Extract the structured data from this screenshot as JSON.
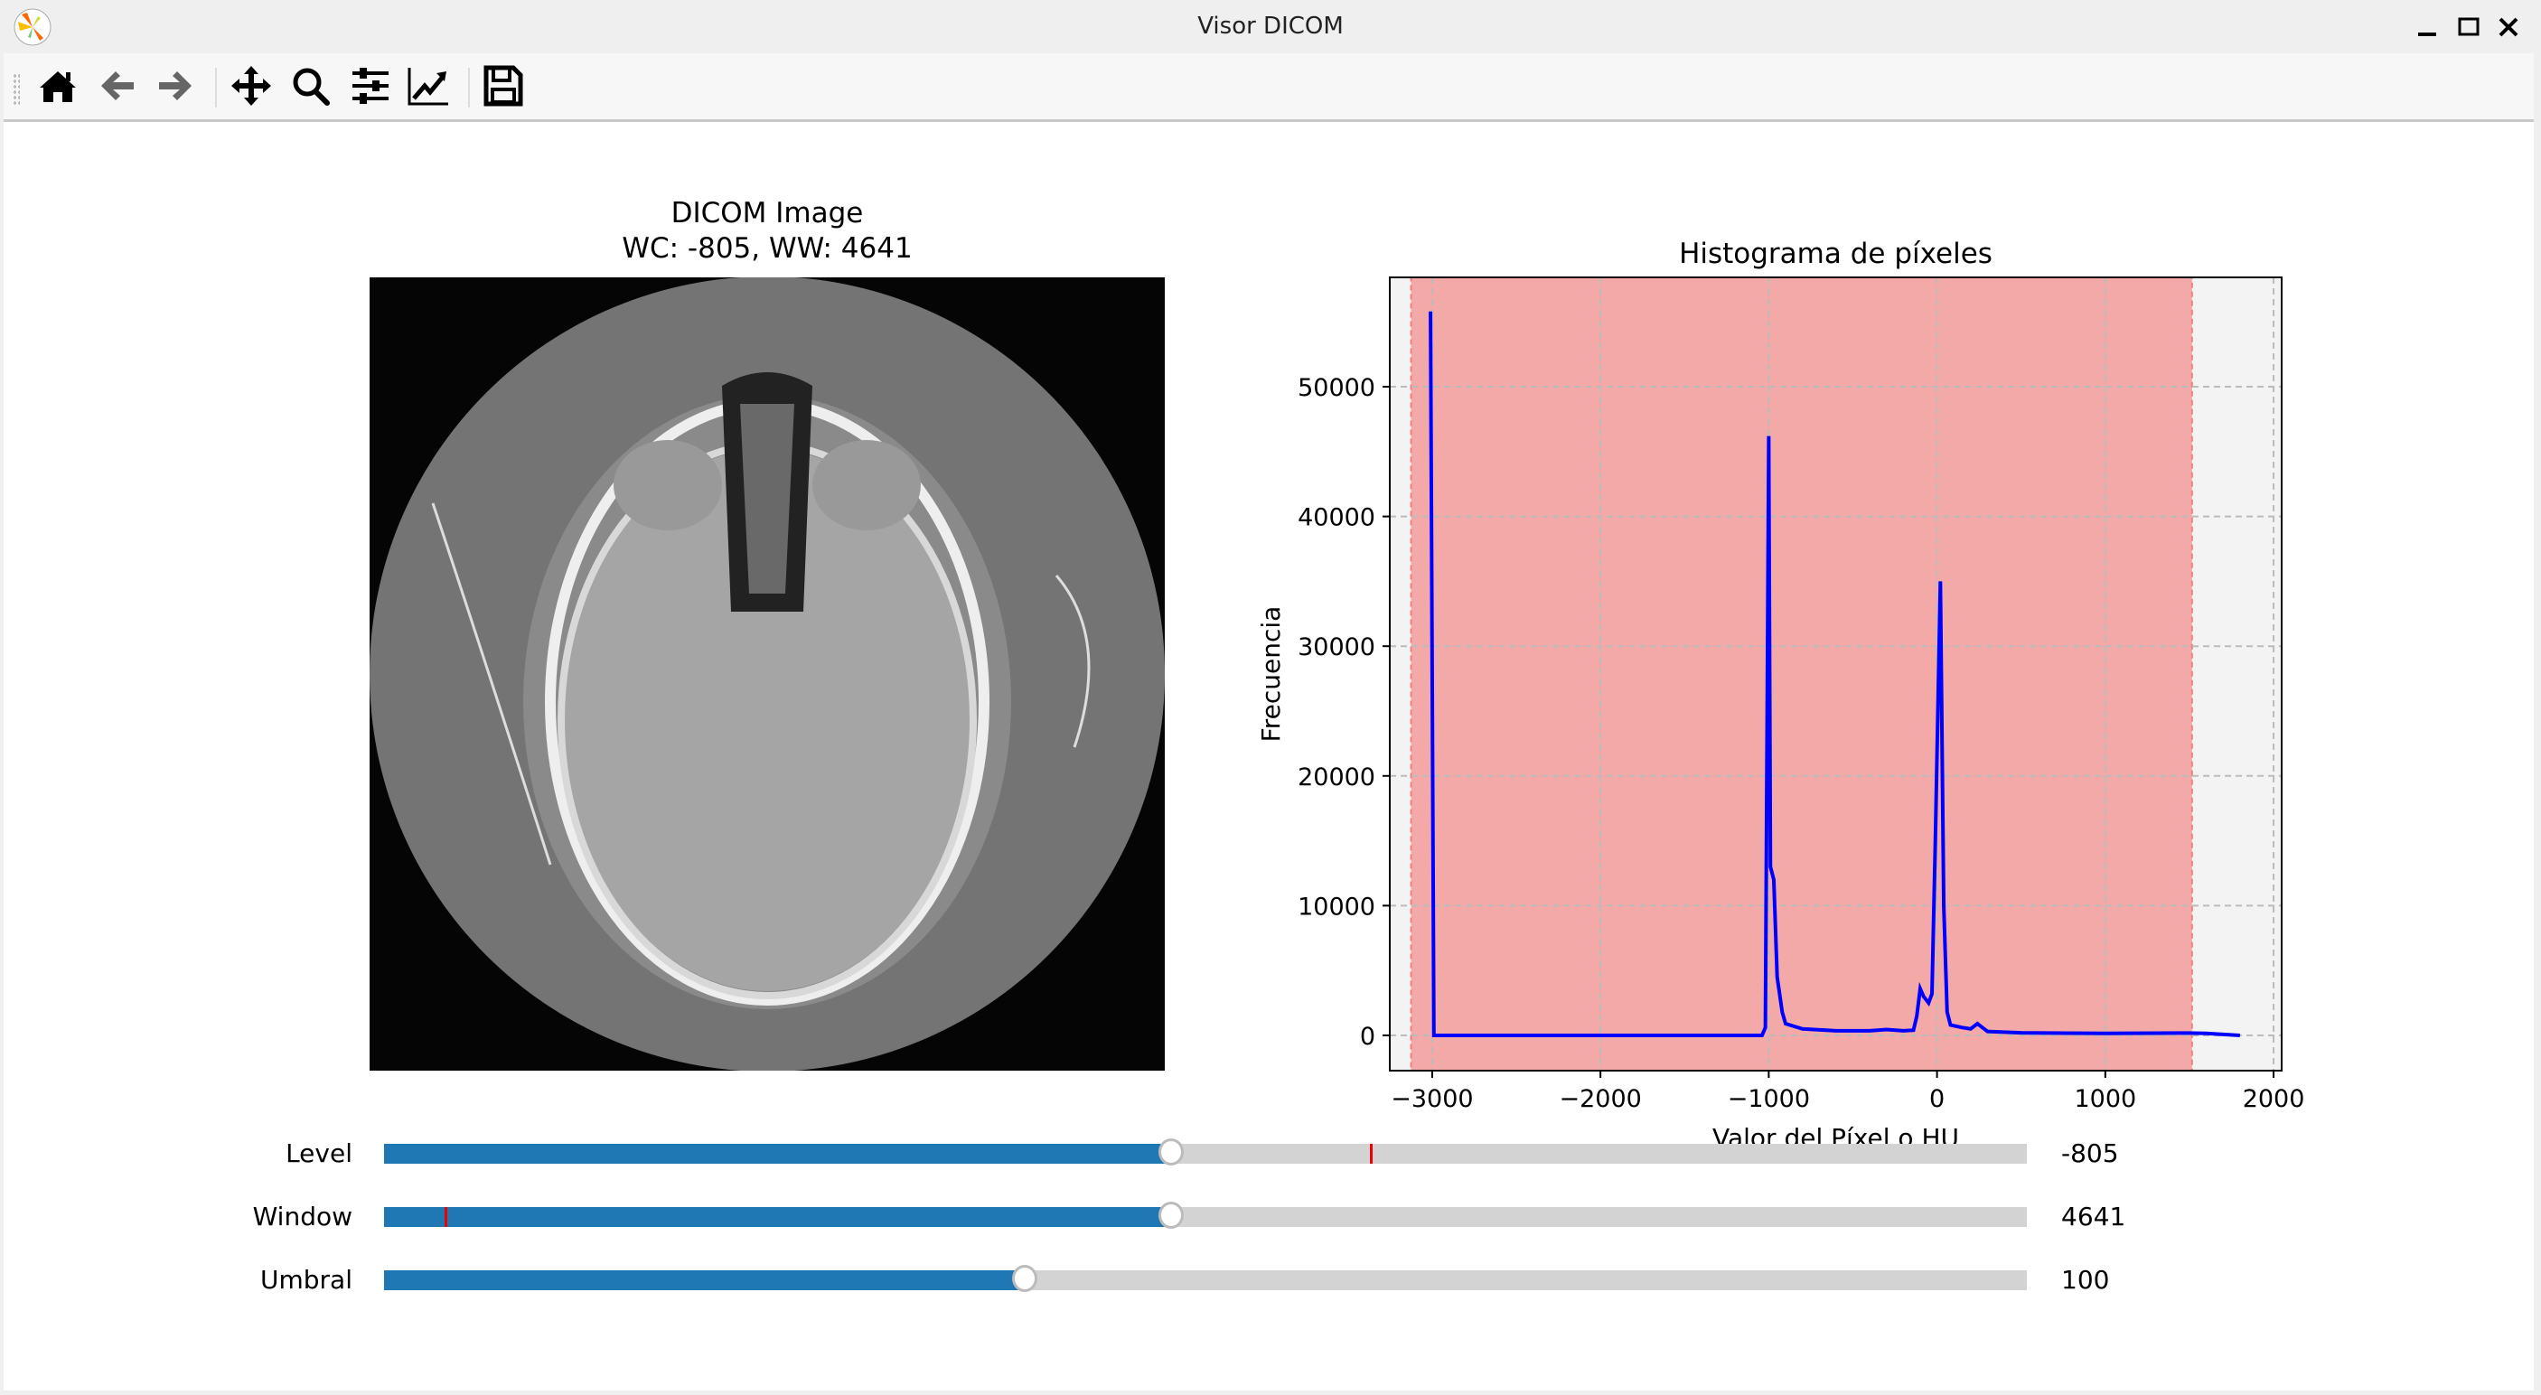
{
  "window": {
    "title": "Visor DICOM",
    "controls": [
      "minimize-icon",
      "maximize-icon",
      "close-icon"
    ]
  },
  "toolbar": {
    "icons": [
      "home-icon",
      "back-arrow-icon",
      "forward-arrow-icon",
      "pan-move-icon",
      "zoom-magnifier-icon",
      "configure-subplots-icon",
      "edit-axis-icon",
      "save-floppy-icon"
    ]
  },
  "image_panel": {
    "title": "DICOM Image",
    "subtitle": "WC: -805, WW: 4641"
  },
  "chart_data": {
    "type": "line",
    "title": "Histograma de píxeles",
    "xlabel": "Valor del Píxel o HU",
    "ylabel": "Frecuencia",
    "xlim": [
      -3252,
      2048
    ],
    "ylim": [
      -2720,
      58430
    ],
    "xticks": [
      -3000,
      -2000,
      -1000,
      0,
      1000,
      2000
    ],
    "xtick_labels": [
      "−3000",
      "−2000",
      "−1000",
      "0",
      "1000",
      "2000"
    ],
    "yticks": [
      0,
      10000,
      20000,
      30000,
      40000,
      50000
    ],
    "ytick_labels": [
      "0",
      "10000",
      "20000",
      "30000",
      "40000",
      "50000"
    ],
    "grid": true,
    "window_span": {
      "from": -3125.5,
      "to": 1515.5,
      "color": "#f4a9a9"
    },
    "series": [
      {
        "color": "#0000ff",
        "points": [
          [
            -3010,
            55800
          ],
          [
            -2990,
            0
          ],
          [
            -1040,
            0
          ],
          [
            -1020,
            600
          ],
          [
            -1000,
            46200
          ],
          [
            -990,
            13000
          ],
          [
            -970,
            12000
          ],
          [
            -950,
            4500
          ],
          [
            -920,
            1800
          ],
          [
            -900,
            900
          ],
          [
            -800,
            500
          ],
          [
            -600,
            350
          ],
          [
            -400,
            350
          ],
          [
            -300,
            450
          ],
          [
            -200,
            350
          ],
          [
            -140,
            400
          ],
          [
            -120,
            1500
          ],
          [
            -100,
            3600
          ],
          [
            -80,
            3000
          ],
          [
            -50,
            2500
          ],
          [
            -30,
            3200
          ],
          [
            -10,
            15000
          ],
          [
            20,
            35000
          ],
          [
            40,
            10000
          ],
          [
            60,
            1800
          ],
          [
            80,
            800
          ],
          [
            150,
            600
          ],
          [
            200,
            500
          ],
          [
            240,
            900
          ],
          [
            270,
            600
          ],
          [
            300,
            300
          ],
          [
            500,
            200
          ],
          [
            1000,
            150
          ],
          [
            1500,
            180
          ],
          [
            1600,
            150
          ],
          [
            1800,
            0
          ]
        ]
      }
    ]
  },
  "sliders": [
    {
      "label": "Level",
      "value": "-805",
      "fraction": 0.479,
      "marker_fraction": 0.6
    },
    {
      "label": "Window",
      "value": "4641",
      "fraction": 0.479,
      "marker_fraction": 0.037
    },
    {
      "label": "Umbral",
      "value": "100",
      "fraction": 0.39
    }
  ],
  "colors": {
    "slider_fill": "#1f77b4",
    "slider_track": "#d3d3d3",
    "marker": "#ff0000"
  }
}
